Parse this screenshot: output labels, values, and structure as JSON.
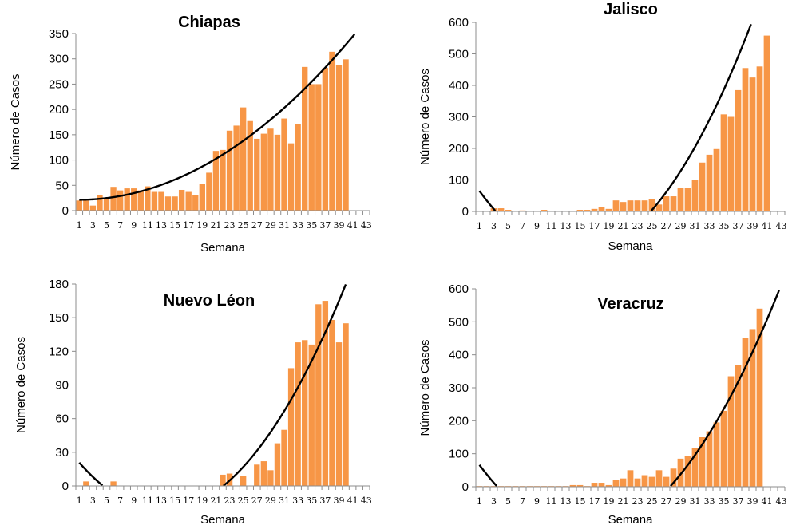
{
  "colors": {
    "bar": "#F79646",
    "trendline": "#000000",
    "axis": "#8C8C8C"
  },
  "chart_data": [
    {
      "type": "bar",
      "title": "Chiapas",
      "xlabel": "Semana",
      "ylabel": "Número de Casos",
      "ylim": [
        0,
        350
      ],
      "yticks": [
        0,
        50,
        100,
        150,
        200,
        250,
        300,
        350
      ],
      "xticks": [
        "1",
        "3",
        "5",
        "7",
        "9",
        "11",
        "13",
        "15",
        "17",
        "19",
        "21",
        "23",
        "25",
        "27",
        "29",
        "31",
        "33",
        "35",
        "37",
        "39",
        "41",
        "43"
      ],
      "x": [
        1,
        2,
        3,
        4,
        5,
        6,
        7,
        8,
        9,
        10,
        11,
        12,
        13,
        14,
        15,
        16,
        17,
        18,
        19,
        20,
        21,
        22,
        23,
        24,
        25,
        26,
        27,
        28,
        29,
        30,
        31,
        32,
        33,
        34,
        35,
        36,
        37,
        38,
        39,
        40,
        41
      ],
      "values": [
        20,
        20,
        10,
        30,
        25,
        47,
        40,
        44,
        44,
        40,
        48,
        37,
        37,
        28,
        28,
        41,
        37,
        30,
        53,
        75,
        118,
        120,
        158,
        168,
        204,
        177,
        142,
        152,
        162,
        150,
        182,
        133,
        171,
        284,
        250,
        250,
        282,
        314,
        288,
        299,
        0
      ],
      "trendline": {
        "type": "polynomial",
        "coefficients": [
          21.6,
          -0.35,
          0.2002
        ]
      },
      "grid": false,
      "legend": "none"
    },
    {
      "type": "bar",
      "title": "Jalisco",
      "xlabel": "Semana",
      "ylabel": "Número de Casos",
      "ylim": [
        0,
        600
      ],
      "yticks": [
        0,
        100,
        200,
        300,
        400,
        500,
        600
      ],
      "xticks": [
        "1",
        "3",
        "5",
        "7",
        "9",
        "11",
        "13",
        "15",
        "17",
        "19",
        "21",
        "23",
        "25",
        "27",
        "29",
        "31",
        "33",
        "35",
        "37",
        "39",
        "41",
        "43"
      ],
      "x": [
        1,
        2,
        3,
        4,
        5,
        6,
        7,
        8,
        9,
        10,
        11,
        12,
        13,
        14,
        15,
        16,
        17,
        18,
        19,
        20,
        21,
        22,
        23,
        24,
        25,
        26,
        27,
        28,
        29,
        30,
        31,
        32,
        33,
        34,
        35,
        36,
        37,
        38,
        39,
        40,
        41
      ],
      "values": [
        0,
        2,
        10,
        10,
        5,
        0,
        3,
        2,
        2,
        5,
        2,
        1,
        2,
        2,
        5,
        5,
        8,
        15,
        8,
        35,
        30,
        35,
        35,
        35,
        40,
        22,
        48,
        48,
        75,
        75,
        100,
        155,
        180,
        198,
        308,
        300,
        385,
        455,
        425,
        460,
        558
      ],
      "trendline": {
        "type": "polynomial",
        "coefficients": [
          97.7,
          -33.7,
          1.1984
        ]
      },
      "grid": false,
      "legend": "none"
    },
    {
      "type": "bar",
      "title": "Nuevo Léon",
      "xlabel": "Semana",
      "ylabel": "Número de Casos",
      "ylim": [
        0,
        180
      ],
      "yticks": [
        0,
        30,
        60,
        90,
        120,
        150,
        180
      ],
      "xticks": [
        "1",
        "3",
        "5",
        "7",
        "9",
        "11",
        "13",
        "15",
        "17",
        "19",
        "21",
        "23",
        "25",
        "27",
        "29",
        "31",
        "33",
        "35",
        "37",
        "39",
        "41",
        "43"
      ],
      "x": [
        1,
        2,
        3,
        4,
        5,
        6,
        7,
        8,
        9,
        10,
        11,
        12,
        13,
        14,
        15,
        16,
        17,
        18,
        19,
        20,
        21,
        22,
        23,
        24,
        25,
        26,
        27,
        28,
        29,
        30,
        31,
        32,
        33,
        34,
        35,
        36,
        37,
        38,
        39,
        40,
        41
      ],
      "values": [
        0,
        4,
        0,
        0,
        0,
        4,
        0,
        0,
        0,
        0,
        0,
        0,
        0,
        0,
        0,
        0,
        0,
        0,
        0,
        0,
        0,
        10,
        11,
        0,
        9,
        0,
        19,
        22,
        14,
        38,
        50,
        105,
        128,
        130,
        126,
        162,
        165,
        148,
        128,
        145,
        0
      ],
      "trendline": {
        "type": "polynomial",
        "coefficients": [
          28.0,
          -7.5,
          0.2823
        ]
      },
      "grid": false,
      "legend": "none"
    },
    {
      "type": "bar",
      "title": "Veracruz",
      "xlabel": "Semana",
      "ylabel": "Número de Casos",
      "ylim": [
        0,
        600
      ],
      "yticks": [
        0,
        100,
        200,
        300,
        400,
        500,
        600
      ],
      "xticks": [
        "1",
        "3",
        "5",
        "7",
        "9",
        "11",
        "13",
        "15",
        "17",
        "19",
        "21",
        "23",
        "25",
        "27",
        "29",
        "31",
        "33",
        "35",
        "37",
        "39",
        "41",
        "43"
      ],
      "x": [
        1,
        2,
        3,
        4,
        5,
        6,
        7,
        8,
        9,
        10,
        11,
        12,
        13,
        14,
        15,
        16,
        17,
        18,
        19,
        20,
        21,
        22,
        23,
        24,
        25,
        26,
        27,
        28,
        29,
        30,
        31,
        32,
        33,
        34,
        35,
        36,
        37,
        38,
        39,
        40,
        41
      ],
      "values": [
        2,
        2,
        2,
        2,
        2,
        2,
        2,
        2,
        2,
        2,
        2,
        2,
        2,
        5,
        5,
        2,
        12,
        12,
        5,
        20,
        25,
        50,
        25,
        35,
        30,
        50,
        30,
        55,
        85,
        92,
        118,
        150,
        168,
        195,
        230,
        335,
        370,
        452,
        478,
        540,
        0
      ],
      "trendline": {
        "type": "polynomial",
        "coefficients": [
          96.0,
          -31.0,
          1.0
        ]
      },
      "grid": false,
      "legend": "none"
    }
  ]
}
